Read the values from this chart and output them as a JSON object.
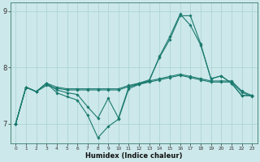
{
  "xlabel": "Humidex (Indice chaleur)",
  "background_color": "#cce8ea",
  "grid_color": "#b0d4d6",
  "line_color": "#1a7a6e",
  "xlim": [
    -0.5,
    23.5
  ],
  "ylim": [
    6.65,
    9.15
  ],
  "yticks": [
    7,
    8,
    9
  ],
  "xticks": [
    0,
    1,
    2,
    3,
    4,
    5,
    6,
    7,
    8,
    9,
    10,
    11,
    12,
    13,
    14,
    15,
    16,
    17,
    18,
    19,
    20,
    21,
    22,
    23
  ],
  "lines": [
    {
      "x": [
        0,
        1,
        2,
        3,
        4,
        5,
        6,
        7,
        8,
        9,
        10,
        11,
        12,
        13,
        14,
        15,
        16,
        17,
        18,
        19,
        20,
        21,
        22,
        23
      ],
      "y": [
        7.0,
        7.65,
        7.57,
        7.72,
        7.65,
        7.62,
        7.62,
        7.62,
        7.62,
        7.62,
        7.62,
        7.68,
        7.72,
        7.76,
        7.8,
        7.84,
        7.88,
        7.84,
        7.8,
        7.76,
        7.76,
        7.76,
        7.58,
        7.5
      ]
    },
    {
      "x": [
        0,
        1,
        2,
        3,
        4,
        5,
        6,
        7,
        8,
        9,
        10,
        11,
        12,
        13,
        14,
        15,
        16,
        17,
        18,
        19,
        20,
        21,
        22,
        23
      ],
      "y": [
        7.0,
        7.65,
        7.57,
        7.68,
        7.63,
        7.6,
        7.6,
        7.6,
        7.6,
        7.6,
        7.6,
        7.66,
        7.7,
        7.74,
        7.78,
        7.82,
        7.86,
        7.82,
        7.78,
        7.74,
        7.74,
        7.74,
        7.56,
        7.48
      ]
    },
    {
      "x": [
        0,
        1,
        2,
        3,
        4,
        5,
        6,
        7,
        8,
        9,
        10,
        11,
        12,
        13,
        14,
        15,
        16,
        17,
        18,
        19,
        20,
        21,
        22,
        23
      ],
      "y": [
        7.0,
        7.65,
        7.57,
        7.72,
        7.6,
        7.55,
        7.52,
        7.3,
        7.1,
        7.45,
        7.1,
        7.65,
        7.72,
        7.78,
        8.18,
        8.5,
        8.92,
        8.92,
        8.42,
        7.8,
        7.85,
        7.72,
        7.5,
        7.5
      ]
    },
    {
      "x": [
        0,
        1,
        2,
        3,
        4,
        5,
        6,
        7,
        8,
        9,
        10,
        11,
        12,
        13,
        14,
        15,
        16,
        17,
        18,
        19,
        20,
        21,
        22,
        23
      ],
      "y": [
        7.0,
        7.65,
        7.57,
        7.72,
        7.55,
        7.48,
        7.42,
        7.15,
        6.75,
        6.95,
        7.08,
        7.62,
        7.7,
        7.76,
        8.2,
        8.55,
        8.95,
        8.75,
        8.4,
        7.8,
        7.85,
        7.72,
        7.5,
        7.5
      ]
    }
  ]
}
